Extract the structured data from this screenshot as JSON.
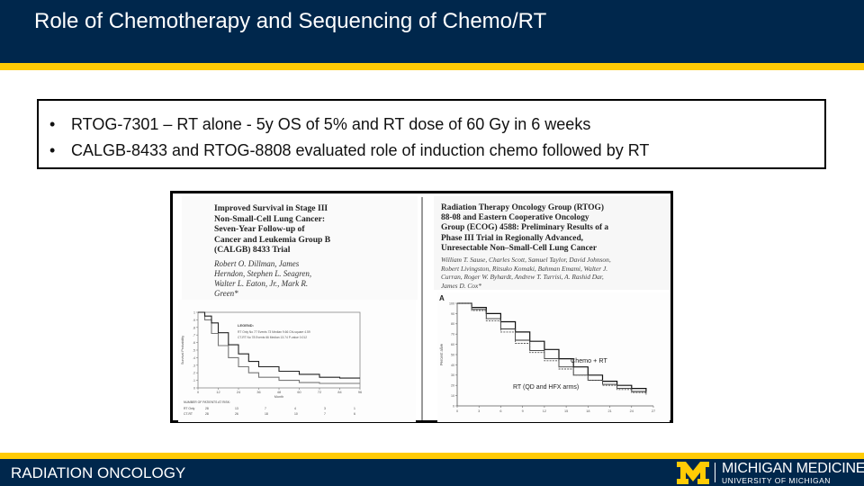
{
  "slide": {
    "title": "Role of Chemotherapy and Sequencing of Chemo/RT",
    "bullet_glyph": "•",
    "bullets": [
      "RTOG-7301 – RT alone - 5y OS of 5% and RT dose of 60 Gy in 6 weeks",
      "CALGB-8433 and RTOG-8808 evaluated role of induction chemo followed by RT"
    ]
  },
  "article_left": {
    "title_lines": [
      "Improved Survival in Stage III",
      "Non-Small-Cell Lung Cancer:",
      "Seven-Year Follow-up of",
      "Cancer and Leukemia Group B",
      "(CALGB) 8433 Trial"
    ],
    "author_lines": [
      "Robert O. Dillman, James",
      "Herndon, Stephen L. Seagren,",
      "Walter L. Eaton, Jr., Mark R.",
      "Green*"
    ]
  },
  "article_right": {
    "title_lines": [
      "Radiation Therapy Oncology Group (RTOG)",
      "88-08 and Eastern Cooperative Oncology",
      "Group (ECOG) 4588: Preliminary Results of a",
      "Phase III Trial in Regionally Advanced,",
      "Unresectable Non–Small-Cell Lung Cancer"
    ],
    "author_lines": [
      "William T. Sause, Charles Scott, Samuel Taylor, David Johnson,",
      "Robert Livingston, Ritsuko Komaki, Bahman Emami, Walter J.",
      "Curran, Roger W. Byhardt, Andrew T. Turrisi, A. Rashid Dar,",
      "James D. Cox*"
    ]
  },
  "chart_data": [
    {
      "type": "line",
      "title": "",
      "xlabel": "Month",
      "ylabel": "Survival Probability",
      "xlim": [
        0,
        96
      ],
      "ylim": [
        0,
        1
      ],
      "x_ticks": [
        "0",
        "12",
        "24",
        "36",
        "48",
        "60",
        "72",
        "84",
        "96"
      ],
      "y_ticks": [
        "0",
        ".1",
        ".2",
        ".3",
        ".4",
        ".5",
        ".6",
        ".7",
        ".8",
        ".9",
        "1"
      ],
      "legend_title": "LEGEND:",
      "legend_rows": [
        "RT Only    No 77   Events 73   Median 9.66   Chi-square 4.59",
        "CT-RT      No 78   Events 66   Median 13.74   P-value 0.012"
      ],
      "risk_table_title": "NUMBER OF PATIENTS AT RISK:",
      "risk_table": [
        {
          "arm": "RT Only",
          "values": [
            "28",
            "13",
            "7",
            "4",
            "3",
            "1"
          ]
        },
        {
          "arm": "CT-RT",
          "values": [
            "28",
            "26",
            "18",
            "10",
            "7",
            "6"
          ]
        }
      ],
      "series": [
        {
          "name": "RT Only",
          "color": "#777777",
          "points": [
            [
              0,
              1
            ],
            [
              4,
              0.9
            ],
            [
              8,
              0.72
            ],
            [
              12,
              0.56
            ],
            [
              18,
              0.4
            ],
            [
              24,
              0.28
            ],
            [
              30,
              0.2
            ],
            [
              36,
              0.14
            ],
            [
              48,
              0.1
            ],
            [
              60,
              0.07
            ],
            [
              72,
              0.06
            ],
            [
              84,
              0.06
            ],
            [
              96,
              0.06
            ]
          ]
        },
        {
          "name": "CT-RT",
          "color": "#222222",
          "points": [
            [
              0,
              1
            ],
            [
              4,
              0.95
            ],
            [
              8,
              0.86
            ],
            [
              12,
              0.73
            ],
            [
              18,
              0.57
            ],
            [
              24,
              0.45
            ],
            [
              30,
              0.35
            ],
            [
              36,
              0.28
            ],
            [
              48,
              0.22
            ],
            [
              60,
              0.18
            ],
            [
              72,
              0.14
            ],
            [
              84,
              0.13
            ],
            [
              96,
              0.13
            ]
          ]
        }
      ]
    },
    {
      "type": "line",
      "title": "",
      "panel_label": "A",
      "xlabel": "",
      "ylabel": "Percent alive",
      "xlim": [
        0,
        27
      ],
      "ylim": [
        0,
        100
      ],
      "x_ticks": [
        "0",
        "3",
        "6",
        "9",
        "12",
        "15",
        "18",
        "21",
        "24",
        "27"
      ],
      "y_ticks": [
        "0",
        "10",
        "20",
        "30",
        "40",
        "50",
        "60",
        "70",
        "80",
        "90",
        "100"
      ],
      "annotations": [
        "Chemo + RT",
        "RT (QD and HFX arms)"
      ],
      "series": [
        {
          "name": "Chemo + RT",
          "color": "#111111",
          "points": [
            [
              0,
              100
            ],
            [
              2,
              96
            ],
            [
              4,
              90
            ],
            [
              6,
              82
            ],
            [
              8,
              72
            ],
            [
              10,
              63
            ],
            [
              12,
              55
            ],
            [
              14,
              46
            ],
            [
              16,
              38
            ],
            [
              18,
              30
            ],
            [
              20,
              24
            ],
            [
              22,
              20
            ],
            [
              24,
              17
            ],
            [
              26,
              14
            ]
          ]
        },
        {
          "name": "RT (QD)",
          "color": "#333333",
          "points": [
            [
              0,
              100
            ],
            [
              2,
              94
            ],
            [
              4,
              85
            ],
            [
              6,
              75
            ],
            [
              8,
              64
            ],
            [
              10,
              54
            ],
            [
              12,
              46
            ],
            [
              14,
              38
            ],
            [
              16,
              30
            ],
            [
              18,
              25
            ],
            [
              20,
              21
            ],
            [
              22,
              17
            ],
            [
              24,
              14
            ],
            [
              26,
              12
            ]
          ]
        },
        {
          "name": "RT (HFX)",
          "color": "#555555",
          "points": [
            [
              0,
              100
            ],
            [
              2,
              93
            ],
            [
              4,
              83
            ],
            [
              6,
              72
            ],
            [
              8,
              61
            ],
            [
              10,
              52
            ],
            [
              12,
              44
            ],
            [
              14,
              36
            ],
            [
              16,
              30
            ],
            [
              18,
              25
            ],
            [
              20,
              20
            ],
            [
              22,
              16
            ],
            [
              24,
              13
            ],
            [
              26,
              11
            ]
          ]
        }
      ]
    }
  ],
  "footer": {
    "department": "RADIATION ONCOLOGY",
    "brand_main": "MICHIGAN MEDICINE",
    "brand_sub": "UNIVERSITY OF MICHIGAN"
  },
  "colors": {
    "navy": "#00274c",
    "maize": "#ffcb05"
  },
  "icons": {
    "logo": "block-m-icon"
  }
}
